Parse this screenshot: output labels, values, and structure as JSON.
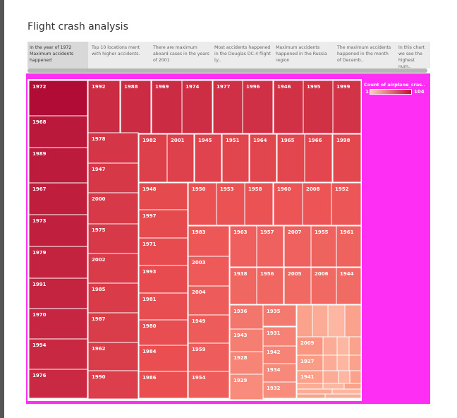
{
  "page": {
    "title": "Flight crash analysis",
    "tabs": [
      {
        "label": "In the year of 1972 Maximum accidents happened",
        "active": true
      },
      {
        "label": "Top 10 locations ment with higher accidents."
      },
      {
        "label": "There are maximum aboard cases in the years of 2001"
      },
      {
        "label": "Most accidents happened in the Douglas DC-4 flight ty.."
      },
      {
        "label": "Maximum accidents happened in the Russia region"
      },
      {
        "label": "The maximum accidents happened in the month of Decemb.."
      },
      {
        "label": "In this chart we see the highest num.."
      }
    ]
  },
  "legend": {
    "title": "Count of airplane_cras..",
    "min": "1",
    "max": "104"
  },
  "colors": {
    "background": "#ff2ef5",
    "low": "#ffd0b8",
    "high": "#b00b36"
  },
  "chart_data": {
    "type": "treemap",
    "measure": "Count of airplane_crashes",
    "color_range": [
      1,
      104
    ],
    "items": [
      {
        "label": "1972",
        "value": 104
      },
      {
        "label": "1968",
        "value": 96
      },
      {
        "label": "1989",
        "value": 95
      },
      {
        "label": "1967",
        "value": 93
      },
      {
        "label": "1973",
        "value": 92
      },
      {
        "label": "1979",
        "value": 90
      },
      {
        "label": "1991",
        "value": 89
      },
      {
        "label": "1970",
        "value": 88
      },
      {
        "label": "1994",
        "value": 87
      },
      {
        "label": "1976",
        "value": 86
      },
      {
        "label": "1992",
        "value": 85
      },
      {
        "label": "1988",
        "value": 84
      },
      {
        "label": "1969",
        "value": 84
      },
      {
        "label": "1974",
        "value": 83
      },
      {
        "label": "1977",
        "value": 82
      },
      {
        "label": "1996",
        "value": 82
      },
      {
        "label": "1946",
        "value": 81
      },
      {
        "label": "1995",
        "value": 81
      },
      {
        "label": "1999",
        "value": 80
      },
      {
        "label": "1978",
        "value": 78
      },
      {
        "label": "1947",
        "value": 77
      },
      {
        "label": "2000",
        "value": 76
      },
      {
        "label": "1975",
        "value": 76
      },
      {
        "label": "2002",
        "value": 75
      },
      {
        "label": "1985",
        "value": 75
      },
      {
        "label": "1987",
        "value": 74
      },
      {
        "label": "1962",
        "value": 74
      },
      {
        "label": "1990",
        "value": 73
      },
      {
        "label": "1982",
        "value": 72
      },
      {
        "label": "2001",
        "value": 71
      },
      {
        "label": "1945",
        "value": 70
      },
      {
        "label": "1951",
        "value": 69
      },
      {
        "label": "1964",
        "value": 69
      },
      {
        "label": "1965",
        "value": 68
      },
      {
        "label": "1966",
        "value": 68
      },
      {
        "label": "1998",
        "value": 67
      },
      {
        "label": "1948",
        "value": 66
      },
      {
        "label": "1997",
        "value": 66
      },
      {
        "label": "1971",
        "value": 65
      },
      {
        "label": "1993",
        "value": 65
      },
      {
        "label": "1981",
        "value": 64
      },
      {
        "label": "1980",
        "value": 64
      },
      {
        "label": "1984",
        "value": 63
      },
      {
        "label": "1986",
        "value": 63
      },
      {
        "label": "1950",
        "value": 62
      },
      {
        "label": "1953",
        "value": 61
      },
      {
        "label": "1958",
        "value": 61
      },
      {
        "label": "1960",
        "value": 60
      },
      {
        "label": "2008",
        "value": 60
      },
      {
        "label": "1952",
        "value": 59
      },
      {
        "label": "1983",
        "value": 58
      },
      {
        "label": "2003",
        "value": 57
      },
      {
        "label": "2004",
        "value": 56
      },
      {
        "label": "1949",
        "value": 56
      },
      {
        "label": "1959",
        "value": 55
      },
      {
        "label": "1954",
        "value": 55
      },
      {
        "label": "1963",
        "value": 54
      },
      {
        "label": "1957",
        "value": 53
      },
      {
        "label": "2007",
        "value": 53
      },
      {
        "label": "1955",
        "value": 52
      },
      {
        "label": "1961",
        "value": 52
      },
      {
        "label": "1938",
        "value": 50
      },
      {
        "label": "1956",
        "value": 50
      },
      {
        "label": "2005",
        "value": 49
      },
      {
        "label": "2006",
        "value": 49
      },
      {
        "label": "1944",
        "value": 48
      },
      {
        "label": "1936",
        "value": 42
      },
      {
        "label": "1935",
        "value": 40
      },
      {
        "label": "1931",
        "value": 36
      },
      {
        "label": "1943",
        "value": 38
      },
      {
        "label": "1942",
        "value": 35
      },
      {
        "label": "1928",
        "value": 34
      },
      {
        "label": "1934",
        "value": 32
      },
      {
        "label": "1929",
        "value": 31
      },
      {
        "label": "1932",
        "value": 30
      },
      {
        "label": "2009",
        "value": 26
      },
      {
        "label": "1927",
        "value": 22
      },
      {
        "label": "1941",
        "value": 20
      }
    ]
  }
}
